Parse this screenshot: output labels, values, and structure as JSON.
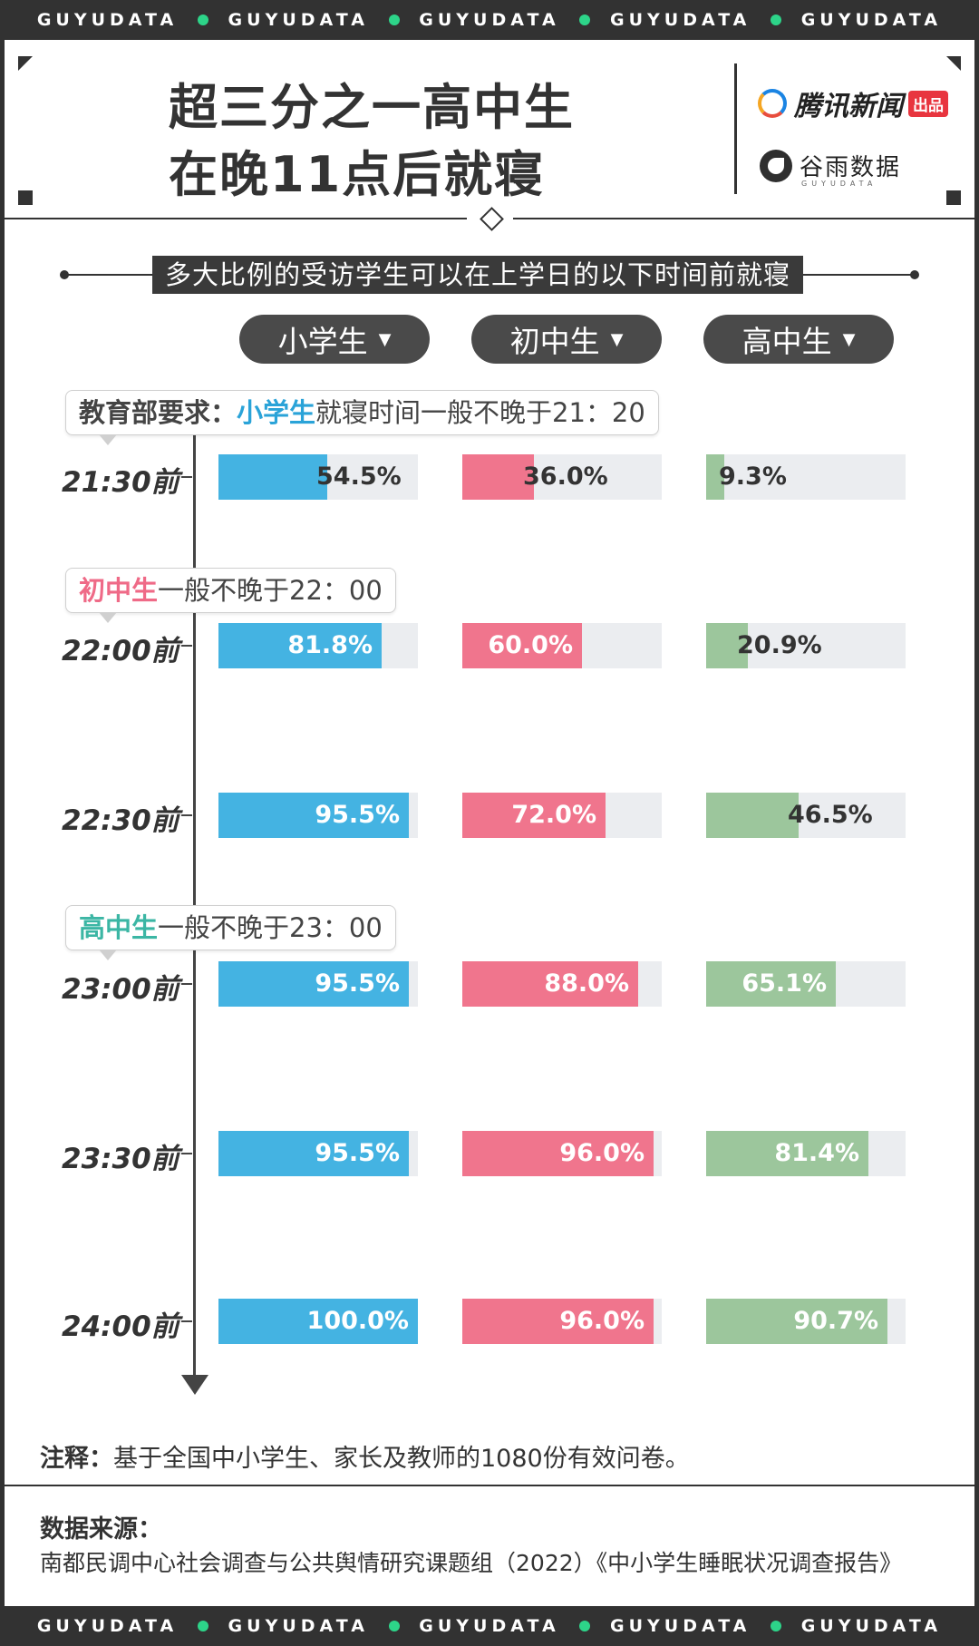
{
  "band_word": "GUYUDATA",
  "title": {
    "line1": "超三分之一高中生",
    "line2": "在晚11点后就寝"
  },
  "logos": {
    "tencent_text": "腾讯新闻",
    "tencent_badge": "出品",
    "guyu_text": "谷雨数据",
    "guyu_sub": "GUYUDATA"
  },
  "subtitle": "多大比例的受访学生可以在上学日的以下时间前就寝",
  "callouts": {
    "primary": {
      "prefix": "教育部要求：",
      "highlight": "小学生",
      "suffix": "就寝时间一般不晚于21：20"
    },
    "middle": {
      "highlight": "初中生",
      "suffix": "一般不晚于22：00"
    },
    "high": {
      "highlight": "高中生",
      "suffix": "一般不晚于23：00"
    }
  },
  "note": {
    "label": "注释：",
    "text": "基于全国中小学生、家长及教师的1080份有效问卷。"
  },
  "source": {
    "label": "数据来源：",
    "text": "南都民调中心社会调查与公共舆情研究课题组（2022）《中小学生睡眠状况调查报告》"
  },
  "chart_data": {
    "type": "bar",
    "orientation": "horizontal",
    "categories": [
      "21:30前",
      "22:00前",
      "22:30前",
      "23:00前",
      "23:30前",
      "24:00前"
    ],
    "series": [
      {
        "name": "小学生",
        "color": "#44b3e2",
        "values": [
          54.5,
          81.8,
          95.5,
          95.5,
          95.5,
          100.0
        ],
        "labels": [
          "54.5%",
          "81.8%",
          "95.5%",
          "95.5%",
          "95.5%",
          "100.0%"
        ]
      },
      {
        "name": "初中生",
        "color": "#f0758d",
        "values": [
          36.0,
          60.0,
          72.0,
          88.0,
          96.0,
          96.0
        ],
        "labels": [
          "36.0%",
          "60.0%",
          "72.0%",
          "88.0%",
          "96.0%",
          "96.0%"
        ]
      },
      {
        "name": "高中生",
        "color": "#9cc69c",
        "values": [
          9.3,
          20.9,
          46.5,
          65.1,
          81.4,
          90.7
        ],
        "labels": [
          "9.3%",
          "20.9%",
          "46.5%",
          "65.1%",
          "81.4%",
          "90.7%"
        ]
      }
    ],
    "xlim": [
      0,
      100
    ],
    "unit": "%"
  }
}
